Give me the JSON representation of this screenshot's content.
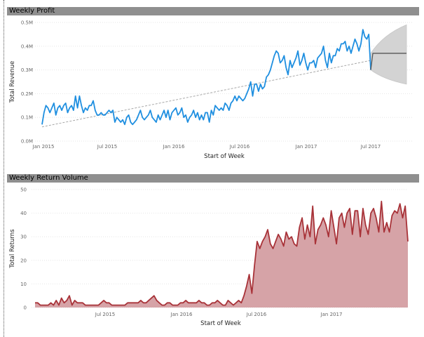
{
  "profit_panel": {
    "title": "Weekly Profit"
  },
  "returns_panel": {
    "title": "Weekly Return Volume"
  },
  "chart_data": [
    {
      "type": "line",
      "title": "Weekly Profit",
      "xlabel": "Start of Week",
      "ylabel": "Total Revenue",
      "x_tick_labels": [
        "Jan 2015",
        "Jul 2015",
        "Jan 2016",
        "Jul 2016",
        "Jan 2017",
        "Jul 2017"
      ],
      "y_tick_labels": [
        "0.0M",
        "0.1M",
        "0.2M",
        "0.3M",
        "0.4M",
        "0.5M"
      ],
      "ylim": [
        0,
        0.5
      ],
      "y_unit": "M",
      "grid": true,
      "series": [
        {
          "values": [
            0.07,
            0.12,
            0.15,
            0.14,
            0.12,
            0.14,
            0.16,
            0.11,
            0.14,
            0.15,
            0.13,
            0.15,
            0.16,
            0.12,
            0.14,
            0.15,
            0.13,
            0.19,
            0.14,
            0.19,
            0.15,
            0.12,
            0.14,
            0.13,
            0.15,
            0.15,
            0.17,
            0.13,
            0.11,
            0.11,
            0.12,
            0.11,
            0.11,
            0.12,
            0.13,
            0.12,
            0.13,
            0.08,
            0.1,
            0.09,
            0.08,
            0.09,
            0.07,
            0.1,
            0.11,
            0.08,
            0.07,
            0.08,
            0.09,
            0.11,
            0.13,
            0.1,
            0.09,
            0.1,
            0.11,
            0.13,
            0.1,
            0.09,
            0.08,
            0.11,
            0.09,
            0.11,
            0.13,
            0.1,
            0.13,
            0.09,
            0.12,
            0.13,
            0.14,
            0.11,
            0.12,
            0.14,
            0.1,
            0.11,
            0.08,
            0.1,
            0.11,
            0.13,
            0.1,
            0.12,
            0.09,
            0.11,
            0.09,
            0.12,
            0.12,
            0.08,
            0.13,
            0.11,
            0.15,
            0.14,
            0.13,
            0.14,
            0.13,
            0.16,
            0.15,
            0.13,
            0.16,
            0.17,
            0.19,
            0.17,
            0.19,
            0.18,
            0.17,
            0.18,
            0.2,
            0.22,
            0.25,
            0.19,
            0.24,
            0.24,
            0.21,
            0.24,
            0.22,
            0.23,
            0.27,
            0.28,
            0.3,
            0.33,
            0.36,
            0.38,
            0.37,
            0.33,
            0.34,
            0.36,
            0.31,
            0.28,
            0.34,
            0.31,
            0.33,
            0.35,
            0.38,
            0.32,
            0.34,
            0.37,
            0.33,
            0.3,
            0.33,
            0.33,
            0.34,
            0.31,
            0.35,
            0.36,
            0.37,
            0.4,
            0.34,
            0.31,
            0.37,
            0.33,
            0.36,
            0.36,
            0.39,
            0.38,
            0.41,
            0.41,
            0.42,
            0.38,
            0.4,
            0.37,
            0.4,
            0.43,
            0.41,
            0.38,
            0.41,
            0.47,
            0.44,
            0.43,
            0.45,
            0.3
          ]
        }
      ],
      "trend_line": [
        0.06,
        0.34
      ],
      "forecast": {
        "value": 0.37,
        "band_upper_start": 0.37,
        "band_upper_end": 0.49,
        "band_lower_start": 0.3,
        "band_lower_end": 0.24
      },
      "colors": {
        "line": "#1f8fe0",
        "trend": "#a8a8a8",
        "forecast": "#555555",
        "band": "#d3d3d3"
      }
    },
    {
      "type": "area",
      "title": "Weekly Return Volume",
      "xlabel": "Start of Week",
      "ylabel": "Total Returns",
      "x_tick_labels": [
        "Jul 2015",
        "Jan 2016",
        "Jul 2016",
        "Jan 2017"
      ],
      "y_tick_labels": [
        "0",
        "10",
        "20",
        "30",
        "40",
        "50"
      ],
      "ylim": [
        0,
        50
      ],
      "grid": true,
      "series": [
        {
          "values": [
            2,
            2,
            1,
            1,
            1,
            1,
            2,
            1,
            3,
            1,
            4,
            2,
            3,
            5,
            1,
            3,
            2,
            2,
            2,
            1,
            1,
            1,
            1,
            1,
            1,
            2,
            3,
            2,
            2,
            1,
            1,
            1,
            1,
            1,
            1,
            2,
            2,
            2,
            2,
            2,
            3,
            2,
            2,
            3,
            4,
            5,
            3,
            2,
            1,
            1,
            2,
            2,
            1,
            1,
            1,
            2,
            2,
            3,
            2,
            2,
            2,
            2,
            3,
            2,
            2,
            1,
            1,
            2,
            2,
            3,
            2,
            1,
            1,
            3,
            2,
            1,
            2,
            3,
            2,
            5,
            9,
            14,
            6,
            18,
            28,
            25,
            28,
            30,
            33,
            27,
            25,
            28,
            31,
            29,
            26,
            32,
            29,
            30,
            27,
            26,
            34,
            38,
            29,
            35,
            30,
            43,
            27,
            33,
            35,
            38,
            35,
            30,
            41,
            34,
            27,
            38,
            40,
            34,
            40,
            42,
            31,
            41,
            41,
            30,
            42,
            35,
            31,
            40,
            42,
            38,
            32,
            45,
            32,
            36,
            32,
            39,
            41,
            40,
            44,
            38,
            43,
            28
          ]
        }
      ],
      "colors": {
        "line": "#a83238",
        "fill": "#d6a3a7"
      }
    }
  ]
}
